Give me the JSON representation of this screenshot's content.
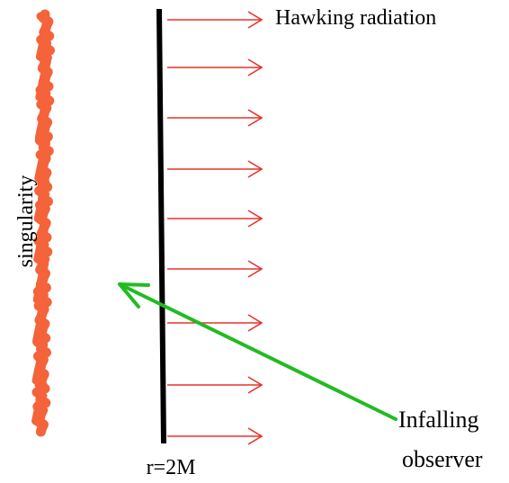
{
  "labels": {
    "hawking_radiation": "Hawking radiation",
    "singularity": "singularity",
    "horizon": "r=2M",
    "observer_line1": "Infalling",
    "observer_line2": "observer"
  },
  "colors": {
    "singularity": "#f4633a",
    "horizon": "#000000",
    "radiation_arrow": "#e8322b",
    "observer_arrow": "#22bb22",
    "text": "#000000"
  }
}
